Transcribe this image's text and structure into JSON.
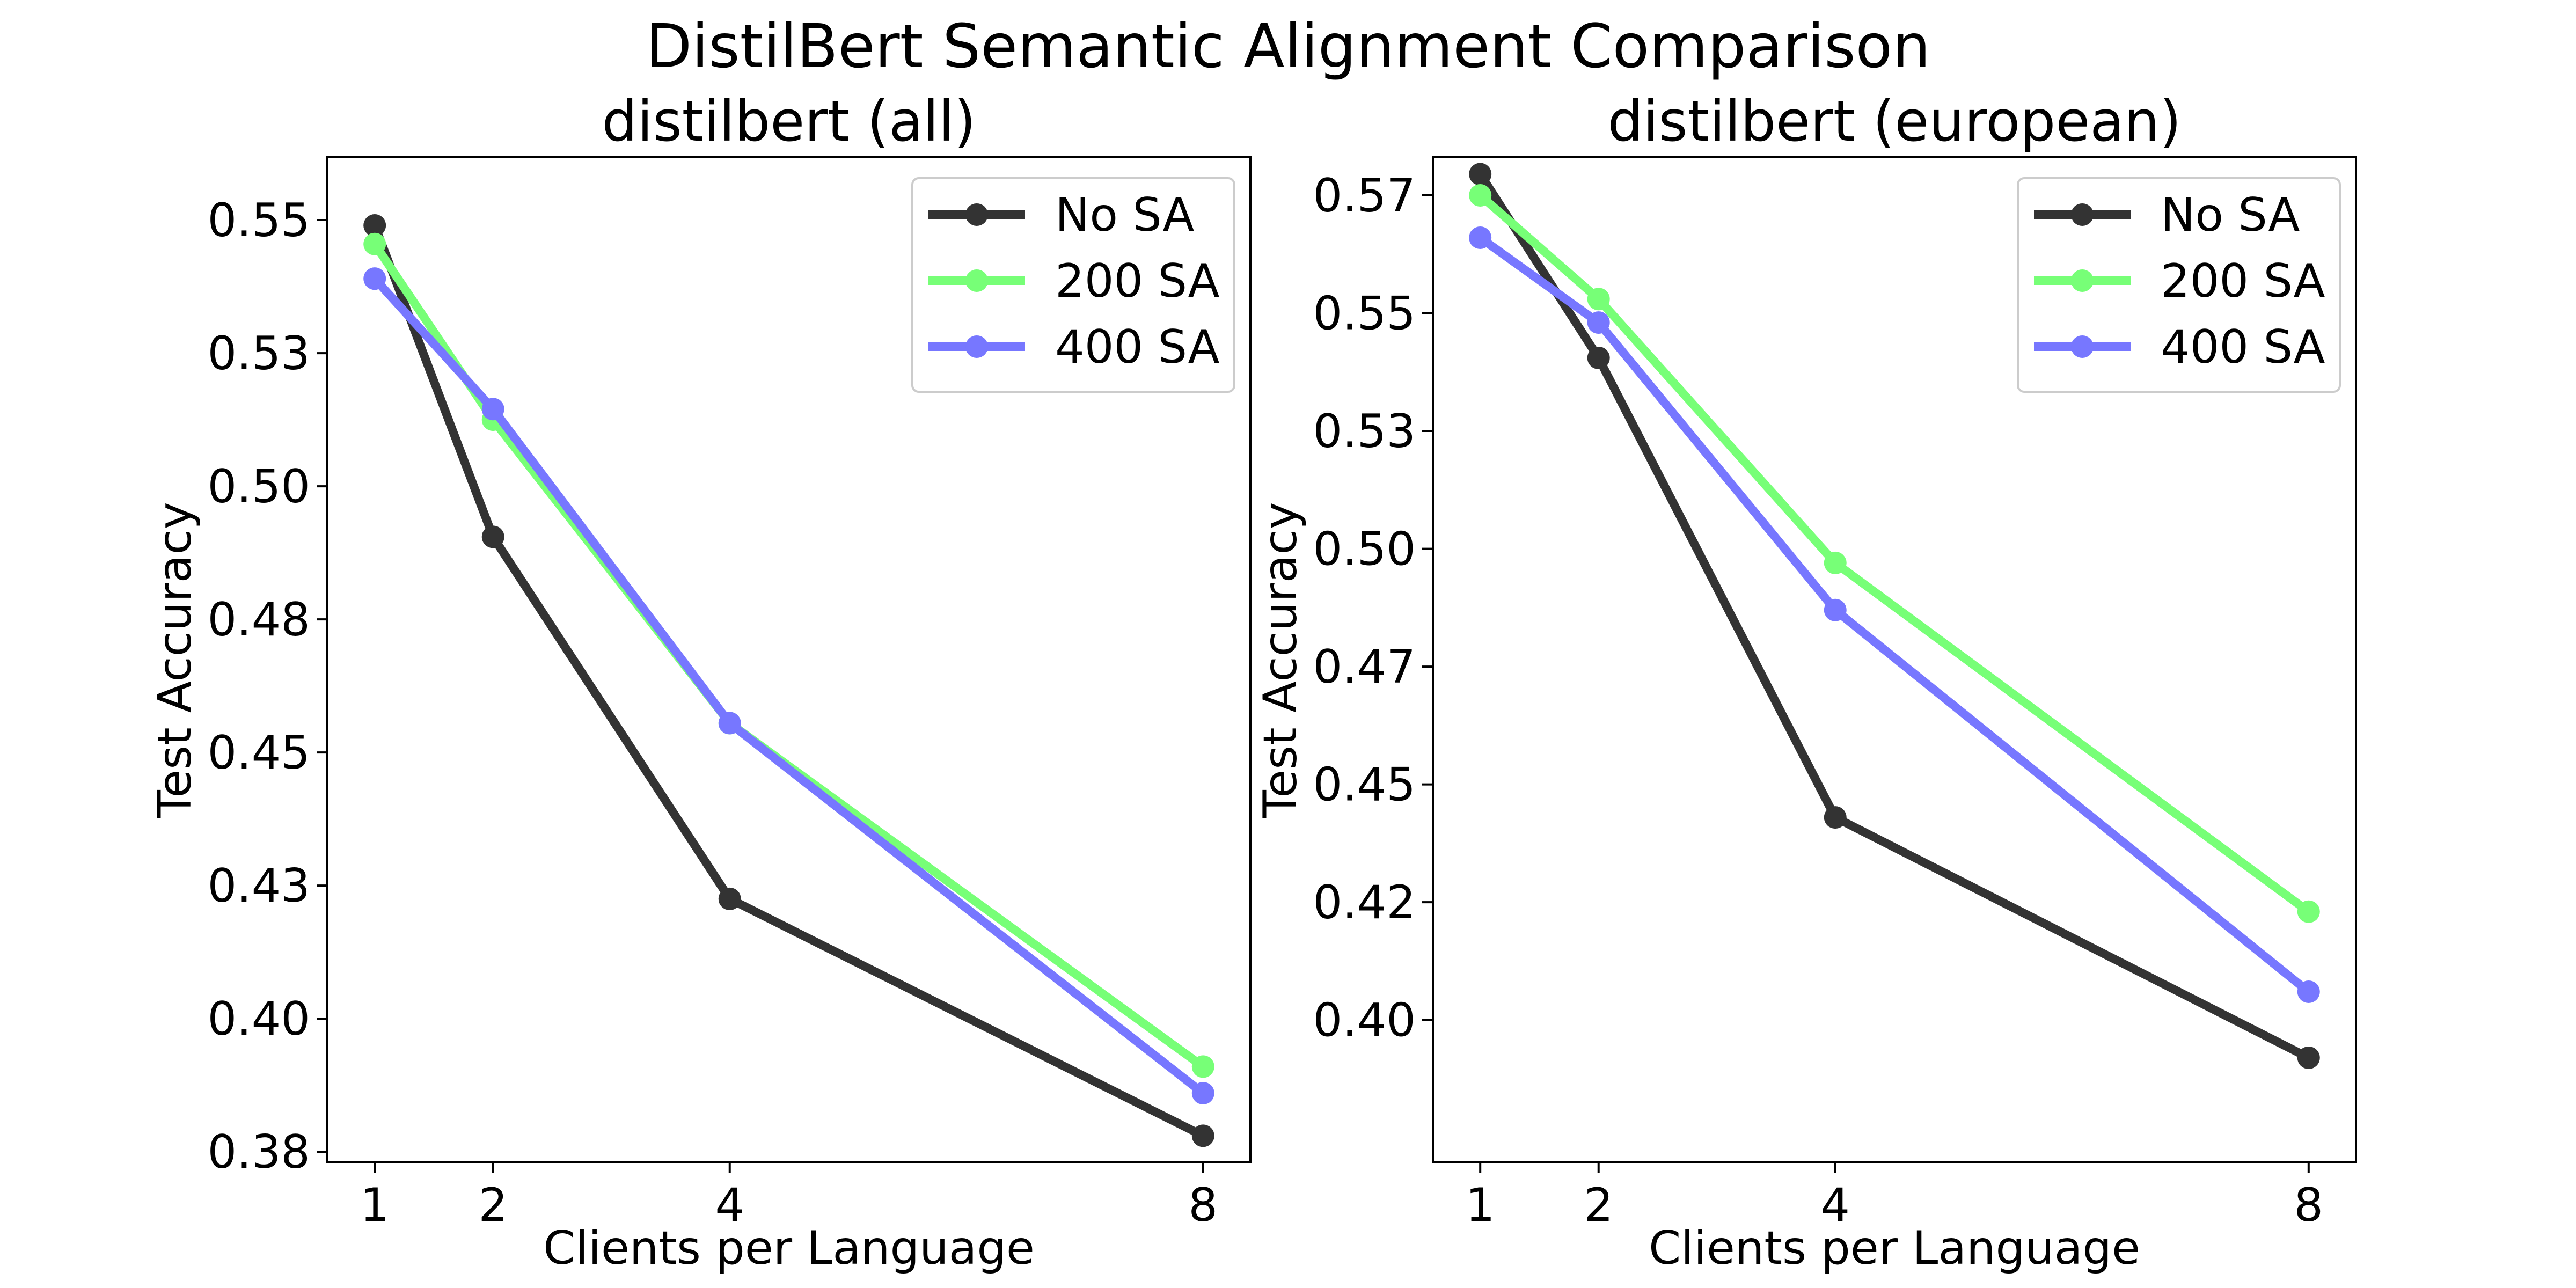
{
  "figure": {
    "title": "DistilBert Semantic Alignment Comparison"
  },
  "chart_data": [
    {
      "type": "line",
      "title": "distilbert (all)",
      "xlabel": "Clients per Language",
      "ylabel": "Test Accuracy",
      "x": [
        1,
        2,
        4,
        8
      ],
      "xticks": [
        1,
        2,
        4,
        8
      ],
      "xlim": [
        0.6,
        8.4
      ],
      "ylim": [
        0.3731,
        0.5619
      ],
      "yticks": [
        0.375,
        0.4,
        0.425,
        0.45,
        0.475,
        0.5,
        0.525,
        0.55
      ],
      "ytick_labels": [
        "0.38",
        "0.40",
        "0.43",
        "0.45",
        "0.48",
        "0.50",
        "0.53",
        "0.55"
      ],
      "grid": false,
      "legend": "top-right",
      "series": [
        {
          "name": "No SA",
          "color": "#333333",
          "values": [
            0.549,
            0.4905,
            0.4225,
            0.378
          ]
        },
        {
          "name": "200 SA",
          "color": "#77ff77",
          "values": [
            0.5455,
            0.5125,
            0.4555,
            0.391
          ]
        },
        {
          "name": "400 SA",
          "color": "#7777ff",
          "values": [
            0.539,
            0.5145,
            0.4555,
            0.386
          ]
        }
      ]
    },
    {
      "type": "line",
      "title": "distilbert (european)",
      "xlabel": "Clients per Language",
      "ylabel": "Test Accuracy",
      "x": [
        1,
        2,
        4,
        8
      ],
      "xticks": [
        1,
        2,
        4,
        8
      ],
      "xlim": [
        0.6,
        8.4
      ],
      "ylim": [
        0.3699,
        0.5832
      ],
      "yticks": [
        0.4,
        0.425,
        0.45,
        0.475,
        0.5,
        0.525,
        0.55,
        0.575
      ],
      "ytick_labels": [
        "0.40",
        "0.42",
        "0.45",
        "0.47",
        "0.50",
        "0.53",
        "0.55",
        "0.57"
      ],
      "grid": false,
      "legend": "top-right",
      "series": [
        {
          "name": "No SA",
          "color": "#333333",
          "values": [
            0.5795,
            0.5405,
            0.443,
            0.392
          ]
        },
        {
          "name": "200 SA",
          "color": "#77ff77",
          "values": [
            0.575,
            0.553,
            0.497,
            0.423
          ]
        },
        {
          "name": "400 SA",
          "color": "#7777ff",
          "values": [
            0.566,
            0.548,
            0.487,
            0.406
          ]
        }
      ]
    }
  ]
}
